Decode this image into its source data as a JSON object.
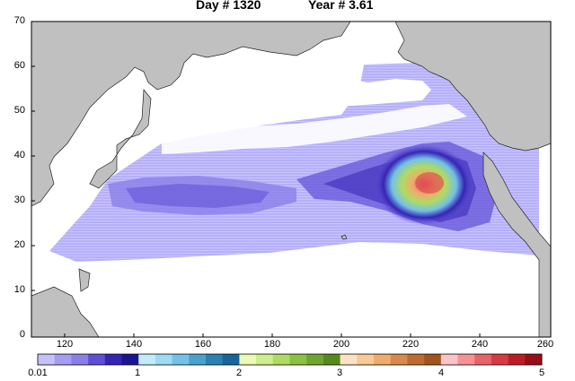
{
  "title": {
    "day": "Day # 1320",
    "year": "Year # 3.61"
  },
  "map": {
    "region": "North Pacific Ocean",
    "y_ticks": [
      "70",
      "60",
      "50",
      "40",
      "30",
      "20",
      "10",
      "0"
    ],
    "x_ticks": [
      "120",
      "140",
      "160",
      "180",
      "200",
      "220",
      "240",
      "260"
    ],
    "ylim": [
      0,
      70
    ],
    "xlim": [
      110,
      260
    ]
  },
  "colorbar": {
    "labels": [
      "0.01",
      "1",
      "2",
      "3",
      "4",
      "5"
    ],
    "colors": [
      "#c6c0ff",
      "#a59cf4",
      "#8a7fea",
      "#5f4fd6",
      "#3525b5",
      "#1a1592",
      "#c3ecfb",
      "#9fdaf5",
      "#73c1e6",
      "#4aa1ce",
      "#2c81b3",
      "#16669b",
      "#ebf9b4",
      "#cdee8b",
      "#aedb62",
      "#8cc244",
      "#6fa72e",
      "#568a1c",
      "#fde3c4",
      "#f9c996",
      "#eeac6d",
      "#d9894b",
      "#bf6b30",
      "#a2541e",
      "#fdc3c6",
      "#f69296",
      "#e96469",
      "#d63b43",
      "#bd1c27",
      "#9b0d16"
    ]
  }
}
